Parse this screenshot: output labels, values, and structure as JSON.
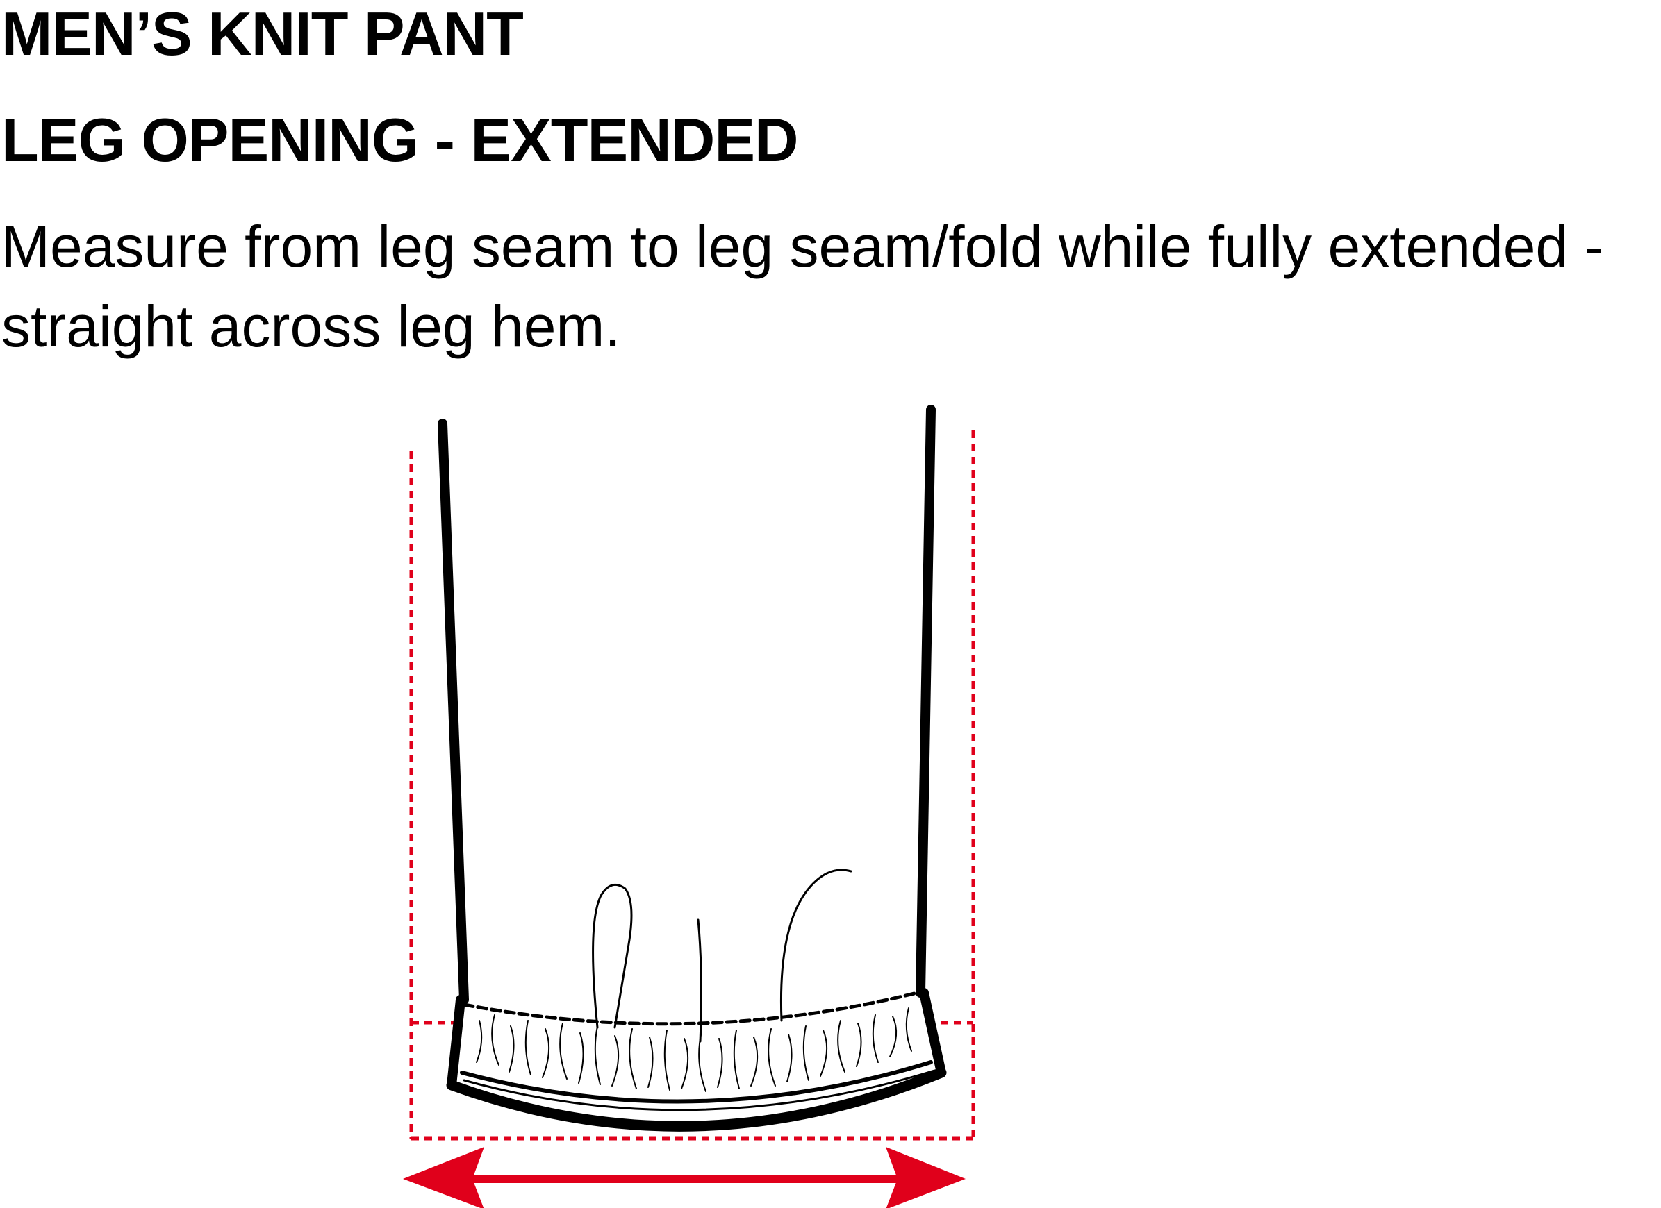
{
  "title": "MEN’S KNIT PANT",
  "subtitle": "LEG OPENING - EXTENDED",
  "instructions": {
    "line1": "Measure from leg seam to leg seam/fold while fully extended -",
    "line2": "straight across leg hem."
  },
  "colors": {
    "measure": "#e0001b",
    "outline": "#000000",
    "background": "#ffffff"
  },
  "icons": {
    "measurement_arrow": "double-headed-arrow",
    "guide_lines": "dotted-red-guides"
  }
}
